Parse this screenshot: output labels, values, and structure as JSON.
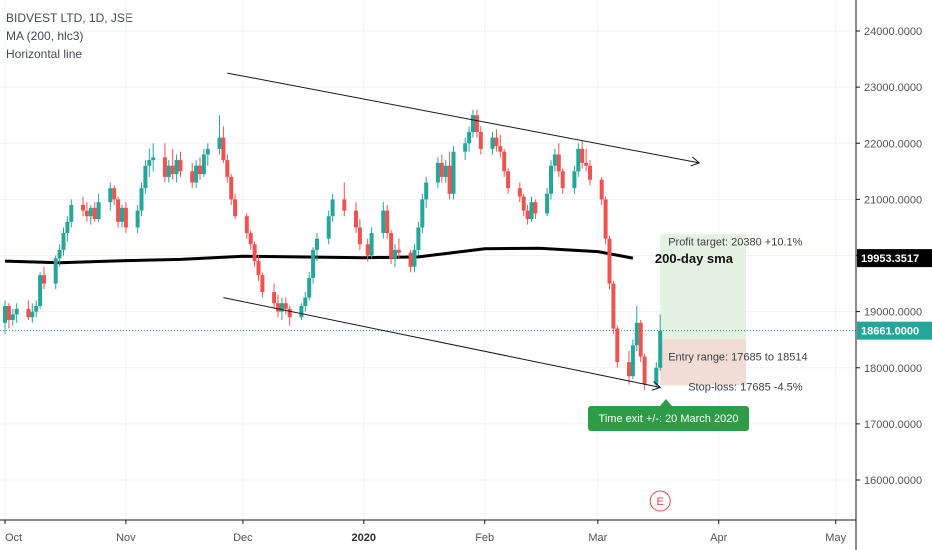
{
  "legend": {
    "symbol": "BIDVEST LTD, 1D, JSE",
    "indicator": "MA (200, hlc3)",
    "drawing": "Horizontal line"
  },
  "colors": {
    "up": "#26a69a",
    "down": "#ef5350",
    "sma": "#000000",
    "hline": "#1e9c8a",
    "profit_zone": "#e4f3e1",
    "loss_zone": "#f1ddd5",
    "time_exit_bg": "#2e9c47",
    "earnings_marker": "#e04848"
  },
  "chart_data": {
    "type": "candlestick",
    "title": "BIDVEST LTD, 1D, JSE",
    "y_axis": {
      "ylim": [
        15500,
        24500
      ],
      "ticks": [
        "16000.0000",
        "17000.0000",
        "18000.0000",
        "19000.0000",
        "20000.0000",
        "21000.0000",
        "22000.0000",
        "23000.0000",
        "24000.0000"
      ]
    },
    "x_axis": {
      "ticks": [
        {
          "label": "Oct",
          "date": "2019-10-01",
          "bold": false
        },
        {
          "label": "Nov",
          "date": "2019-11-01",
          "bold": false
        },
        {
          "label": "Dec",
          "date": "2019-12-01",
          "bold": false
        },
        {
          "label": "2020",
          "date": "2020-01-01",
          "bold": true
        },
        {
          "label": "Feb",
          "date": "2020-02-01",
          "bold": false
        },
        {
          "label": "Mar",
          "date": "2020-03-01",
          "bold": false
        },
        {
          "label": "Apr",
          "date": "2020-04-01",
          "bold": false
        },
        {
          "label": "May",
          "date": "2020-05-01",
          "bold": false
        }
      ]
    },
    "candles": [
      {
        "date": "2019-10-01",
        "o": 18800,
        "h": 19200,
        "l": 18600,
        "c": 19100
      },
      {
        "date": "2019-10-02",
        "o": 19100,
        "h": 19150,
        "l": 18700,
        "c": 18850
      },
      {
        "date": "2019-10-03",
        "o": 18850,
        "h": 19050,
        "l": 18750,
        "c": 18950
      },
      {
        "date": "2019-10-04",
        "o": 18950,
        "h": 19150,
        "l": 18800,
        "c": 19050
      },
      {
        "date": "2019-10-07",
        "o": 19050,
        "h": 19200,
        "l": 18850,
        "c": 18900
      },
      {
        "date": "2019-10-08",
        "o": 18900,
        "h": 19150,
        "l": 18800,
        "c": 19000
      },
      {
        "date": "2019-10-09",
        "o": 19000,
        "h": 19200,
        "l": 18900,
        "c": 19100
      },
      {
        "date": "2019-10-10",
        "o": 19100,
        "h": 19700,
        "l": 19050,
        "c": 19650
      },
      {
        "date": "2019-10-11",
        "o": 19650,
        "h": 19800,
        "l": 19400,
        "c": 19500
      },
      {
        "date": "2019-10-14",
        "o": 19500,
        "h": 20000,
        "l": 19400,
        "c": 19950
      },
      {
        "date": "2019-10-15",
        "o": 19950,
        "h": 20200,
        "l": 19800,
        "c": 20100
      },
      {
        "date": "2019-10-16",
        "o": 20100,
        "h": 20500,
        "l": 20000,
        "c": 20400
      },
      {
        "date": "2019-10-17",
        "o": 20400,
        "h": 20700,
        "l": 20250,
        "c": 20600
      },
      {
        "date": "2019-10-18",
        "o": 20600,
        "h": 21000,
        "l": 20500,
        "c": 20900
      },
      {
        "date": "2019-10-21",
        "o": 20900,
        "h": 21050,
        "l": 20700,
        "c": 20800
      },
      {
        "date": "2019-10-22",
        "o": 20800,
        "h": 20950,
        "l": 20600,
        "c": 20700
      },
      {
        "date": "2019-10-23",
        "o": 20700,
        "h": 20900,
        "l": 20550,
        "c": 20850
      },
      {
        "date": "2019-10-24",
        "o": 20850,
        "h": 20950,
        "l": 20600,
        "c": 20650
      },
      {
        "date": "2019-10-25",
        "o": 20650,
        "h": 21100,
        "l": 20600,
        "c": 20950
      },
      {
        "date": "2019-10-28",
        "o": 20950,
        "h": 21300,
        "l": 20800,
        "c": 21200
      },
      {
        "date": "2019-10-29",
        "o": 21200,
        "h": 21250,
        "l": 20900,
        "c": 21000
      },
      {
        "date": "2019-10-30",
        "o": 21000,
        "h": 21050,
        "l": 20500,
        "c": 20600
      },
      {
        "date": "2019-10-31",
        "o": 20600,
        "h": 20900,
        "l": 20500,
        "c": 20850
      },
      {
        "date": "2019-11-01",
        "o": 20850,
        "h": 20950,
        "l": 20400,
        "c": 20500
      },
      {
        "date": "2019-11-04",
        "o": 20500,
        "h": 20900,
        "l": 20400,
        "c": 20800
      },
      {
        "date": "2019-11-05",
        "o": 20800,
        "h": 21300,
        "l": 20700,
        "c": 21200
      },
      {
        "date": "2019-11-06",
        "o": 21200,
        "h": 21700,
        "l": 21100,
        "c": 21600
      },
      {
        "date": "2019-11-07",
        "o": 21600,
        "h": 21900,
        "l": 21400,
        "c": 21700
      },
      {
        "date": "2019-11-08",
        "o": 21700,
        "h": 22000,
        "l": 21500,
        "c": 21750
      },
      {
        "date": "2019-11-11",
        "o": 21750,
        "h": 22000,
        "l": 21300,
        "c": 21400
      },
      {
        "date": "2019-11-12",
        "o": 21400,
        "h": 21700,
        "l": 21300,
        "c": 21600
      },
      {
        "date": "2019-11-13",
        "o": 21600,
        "h": 21900,
        "l": 21350,
        "c": 21450
      },
      {
        "date": "2019-11-14",
        "o": 21450,
        "h": 21800,
        "l": 21300,
        "c": 21700
      },
      {
        "date": "2019-11-15",
        "o": 21700,
        "h": 21850,
        "l": 21400,
        "c": 21500
      },
      {
        "date": "2019-11-18",
        "o": 21500,
        "h": 21650,
        "l": 21200,
        "c": 21300
      },
      {
        "date": "2019-11-19",
        "o": 21300,
        "h": 21700,
        "l": 21200,
        "c": 21600
      },
      {
        "date": "2019-11-20",
        "o": 21600,
        "h": 21750,
        "l": 21350,
        "c": 21450
      },
      {
        "date": "2019-11-21",
        "o": 21450,
        "h": 21900,
        "l": 21400,
        "c": 21800
      },
      {
        "date": "2019-11-22",
        "o": 21800,
        "h": 22000,
        "l": 21600,
        "c": 21900
      },
      {
        "date": "2019-11-25",
        "o": 21900,
        "h": 22500,
        "l": 21800,
        "c": 22100
      },
      {
        "date": "2019-11-26",
        "o": 22100,
        "h": 22300,
        "l": 21650,
        "c": 21700
      },
      {
        "date": "2019-11-27",
        "o": 21700,
        "h": 21800,
        "l": 21300,
        "c": 21400
      },
      {
        "date": "2019-11-28",
        "o": 21400,
        "h": 21450,
        "l": 20900,
        "c": 21000
      },
      {
        "date": "2019-11-29",
        "o": 21000,
        "h": 21100,
        "l": 20650,
        "c": 20700
      },
      {
        "date": "2019-12-02",
        "o": 20700,
        "h": 20750,
        "l": 20300,
        "c": 20400
      },
      {
        "date": "2019-12-03",
        "o": 20400,
        "h": 20450,
        "l": 20100,
        "c": 20200
      },
      {
        "date": "2019-12-04",
        "o": 20200,
        "h": 20250,
        "l": 19800,
        "c": 19900
      },
      {
        "date": "2019-12-05",
        "o": 19900,
        "h": 20000,
        "l": 19550,
        "c": 19650
      },
      {
        "date": "2019-12-06",
        "o": 19650,
        "h": 19700,
        "l": 19250,
        "c": 19350
      },
      {
        "date": "2019-12-09",
        "o": 19350,
        "h": 19500,
        "l": 19050,
        "c": 19150
      },
      {
        "date": "2019-12-10",
        "o": 19150,
        "h": 19300,
        "l": 18900,
        "c": 19000
      },
      {
        "date": "2019-12-11",
        "o": 19000,
        "h": 19250,
        "l": 18850,
        "c": 19150
      },
      {
        "date": "2019-12-12",
        "o": 19150,
        "h": 19250,
        "l": 18950,
        "c": 19050
      },
      {
        "date": "2019-12-13",
        "o": 19050,
        "h": 19100,
        "l": 18750,
        "c": 18900
      },
      {
        "date": "2019-12-16",
        "o": 18900,
        "h": 19150,
        "l": 18850,
        "c": 19100
      },
      {
        "date": "2019-12-17",
        "o": 19100,
        "h": 19350,
        "l": 19000,
        "c": 19250
      },
      {
        "date": "2019-12-18",
        "o": 19250,
        "h": 19700,
        "l": 19200,
        "c": 19600
      },
      {
        "date": "2019-12-19",
        "o": 19600,
        "h": 20150,
        "l": 19500,
        "c": 20100
      },
      {
        "date": "2019-12-20",
        "o": 20100,
        "h": 20400,
        "l": 19900,
        "c": 20300
      },
      {
        "date": "2019-12-23",
        "o": 20300,
        "h": 20800,
        "l": 20200,
        "c": 20700
      },
      {
        "date": "2019-12-24",
        "o": 20700,
        "h": 21100,
        "l": 20600,
        "c": 21000
      },
      {
        "date": "2019-12-27",
        "o": 21000,
        "h": 21300,
        "l": 20700,
        "c": 20800
      },
      {
        "date": "2019-12-30",
        "o": 20800,
        "h": 20950,
        "l": 20400,
        "c": 20500
      },
      {
        "date": "2019-12-31",
        "o": 20500,
        "h": 20650,
        "l": 20100,
        "c": 20200
      },
      {
        "date": "2020-01-02",
        "o": 20200,
        "h": 20300,
        "l": 19900,
        "c": 20000
      },
      {
        "date": "2020-01-03",
        "o": 20000,
        "h": 20500,
        "l": 19950,
        "c": 20400
      },
      {
        "date": "2020-01-06",
        "o": 20400,
        "h": 20950,
        "l": 20300,
        "c": 20800
      },
      {
        "date": "2020-01-07",
        "o": 20800,
        "h": 20900,
        "l": 20300,
        "c": 20400
      },
      {
        "date": "2020-01-08",
        "o": 20400,
        "h": 20450,
        "l": 19850,
        "c": 19950
      },
      {
        "date": "2020-01-09",
        "o": 19950,
        "h": 20200,
        "l": 19800,
        "c": 20100
      },
      {
        "date": "2020-01-10",
        "o": 20100,
        "h": 20300,
        "l": 19950,
        "c": 20050
      },
      {
        "date": "2020-01-13",
        "o": 20050,
        "h": 20100,
        "l": 19700,
        "c": 19800
      },
      {
        "date": "2020-01-14",
        "o": 19800,
        "h": 20200,
        "l": 19700,
        "c": 20100
      },
      {
        "date": "2020-01-15",
        "o": 20100,
        "h": 20600,
        "l": 20000,
        "c": 20500
      },
      {
        "date": "2020-01-16",
        "o": 20500,
        "h": 21100,
        "l": 20400,
        "c": 21000
      },
      {
        "date": "2020-01-17",
        "o": 21000,
        "h": 21400,
        "l": 20850,
        "c": 21300
      },
      {
        "date": "2020-01-20",
        "o": 21300,
        "h": 21750,
        "l": 21200,
        "c": 21650
      },
      {
        "date": "2020-01-21",
        "o": 21650,
        "h": 21800,
        "l": 21300,
        "c": 21400
      },
      {
        "date": "2020-01-22",
        "o": 21400,
        "h": 21700,
        "l": 21300,
        "c": 21600
      },
      {
        "date": "2020-01-23",
        "o": 21600,
        "h": 21850,
        "l": 21000,
        "c": 21100
      },
      {
        "date": "2020-01-24",
        "o": 21100,
        "h": 21950,
        "l": 21000,
        "c": 21850
      },
      {
        "date": "2020-01-27",
        "o": 21850,
        "h": 22100,
        "l": 21700,
        "c": 22000
      },
      {
        "date": "2020-01-28",
        "o": 22000,
        "h": 22300,
        "l": 21850,
        "c": 22200
      },
      {
        "date": "2020-01-29",
        "o": 22200,
        "h": 22600,
        "l": 22100,
        "c": 22500
      },
      {
        "date": "2020-01-30",
        "o": 22500,
        "h": 22600,
        "l": 22100,
        "c": 22200
      },
      {
        "date": "2020-01-31",
        "o": 22200,
        "h": 22300,
        "l": 21800,
        "c": 21900
      },
      {
        "date": "2020-02-03",
        "o": 21900,
        "h": 22200,
        "l": 21800,
        "c": 22100
      },
      {
        "date": "2020-02-04",
        "o": 22100,
        "h": 22250,
        "l": 21850,
        "c": 21950
      },
      {
        "date": "2020-02-05",
        "o": 21950,
        "h": 22150,
        "l": 21750,
        "c": 21850
      },
      {
        "date": "2020-02-06",
        "o": 21850,
        "h": 21900,
        "l": 21400,
        "c": 21500
      },
      {
        "date": "2020-02-07",
        "o": 21500,
        "h": 21550,
        "l": 21100,
        "c": 21200
      },
      {
        "date": "2020-02-10",
        "o": 21200,
        "h": 21300,
        "l": 20950,
        "c": 21050
      },
      {
        "date": "2020-02-11",
        "o": 21050,
        "h": 21100,
        "l": 20700,
        "c": 20800
      },
      {
        "date": "2020-02-12",
        "o": 20800,
        "h": 20900,
        "l": 20550,
        "c": 20650
      },
      {
        "date": "2020-02-13",
        "o": 20650,
        "h": 21050,
        "l": 20600,
        "c": 20950
      },
      {
        "date": "2020-02-14",
        "o": 20950,
        "h": 21000,
        "l": 20650,
        "c": 20750
      },
      {
        "date": "2020-02-17",
        "o": 20750,
        "h": 21200,
        "l": 20700,
        "c": 21100
      },
      {
        "date": "2020-02-18",
        "o": 21100,
        "h": 21700,
        "l": 21000,
        "c": 21600
      },
      {
        "date": "2020-02-19",
        "o": 21600,
        "h": 21900,
        "l": 21500,
        "c": 21800
      },
      {
        "date": "2020-02-20",
        "o": 21800,
        "h": 22000,
        "l": 21400,
        "c": 21500
      },
      {
        "date": "2020-02-21",
        "o": 21500,
        "h": 21550,
        "l": 21100,
        "c": 21200
      },
      {
        "date": "2020-02-24",
        "o": 21200,
        "h": 21600,
        "l": 21100,
        "c": 21500
      },
      {
        "date": "2020-02-25",
        "o": 21500,
        "h": 22000,
        "l": 21400,
        "c": 21900
      },
      {
        "date": "2020-02-26",
        "o": 21900,
        "h": 22050,
        "l": 21550,
        "c": 21650
      },
      {
        "date": "2020-02-27",
        "o": 21650,
        "h": 21900,
        "l": 21500,
        "c": 21600
      },
      {
        "date": "2020-02-28",
        "o": 21600,
        "h": 21700,
        "l": 21250,
        "c": 21350
      },
      {
        "date": "2020-03-02",
        "o": 21350,
        "h": 21400,
        "l": 20900,
        "c": 21000
      },
      {
        "date": "2020-03-03",
        "o": 21000,
        "h": 21050,
        "l": 20200,
        "c": 20300
      },
      {
        "date": "2020-03-04",
        "o": 20300,
        "h": 20350,
        "l": 19400,
        "c": 19500
      },
      {
        "date": "2020-03-05",
        "o": 19500,
        "h": 19550,
        "l": 18600,
        "c": 18700
      },
      {
        "date": "2020-03-06",
        "o": 18700,
        "h": 18750,
        "l": 18000,
        "c": 18100
      },
      {
        "date": "2020-03-09",
        "o": 18100,
        "h": 18300,
        "l": 17700,
        "c": 17850
      },
      {
        "date": "2020-03-10",
        "o": 17850,
        "h": 18500,
        "l": 17800,
        "c": 18400
      },
      {
        "date": "2020-03-11",
        "o": 18400,
        "h": 19100,
        "l": 18300,
        "c": 18800
      },
      {
        "date": "2020-03-12",
        "o": 18800,
        "h": 18850,
        "l": 18100,
        "c": 18200
      },
      {
        "date": "2020-03-13",
        "o": 18200,
        "h": 18250,
        "l": 17600,
        "c": 17700
      },
      {
        "date": "2020-03-16",
        "o": 17700,
        "h": 18100,
        "l": 17650,
        "c": 18000
      },
      {
        "date": "2020-03-17",
        "o": 18000,
        "h": 18950,
        "l": 17950,
        "c": 18661
      }
    ],
    "sma": {
      "name": "MA (200, hlc3)",
      "points": [
        {
          "date": "2019-10-01",
          "v": 19900
        },
        {
          "date": "2019-10-15",
          "v": 19870
        },
        {
          "date": "2019-11-01",
          "v": 19910
        },
        {
          "date": "2019-11-15",
          "v": 19930
        },
        {
          "date": "2019-12-01",
          "v": 19985
        },
        {
          "date": "2019-12-15",
          "v": 19975
        },
        {
          "date": "2020-01-01",
          "v": 19960
        },
        {
          "date": "2020-01-15",
          "v": 19975
        },
        {
          "date": "2020-02-01",
          "v": 20120
        },
        {
          "date": "2020-02-15",
          "v": 20130
        },
        {
          "date": "2020-03-01",
          "v": 20070
        },
        {
          "date": "2020-03-10",
          "v": 19953.3517
        }
      ],
      "label": "200-day sma",
      "last_label": "19953.3517"
    },
    "horizontal_line": {
      "value": 18661,
      "label": "18661.0000"
    },
    "trendlines": [
      {
        "start": {
          "date": "2019-11-27",
          "v": 23250
        },
        "end": {
          "date": "2020-03-27",
          "v": 21650
        }
      },
      {
        "start": {
          "date": "2019-11-26",
          "v": 19250
        },
        "end": {
          "date": "2020-03-17",
          "v": 17650
        }
      }
    ],
    "position": {
      "start_date": "2020-03-17",
      "end_date": "2020-04-08",
      "target": 20380,
      "entry_high": 18514,
      "stop": 17685,
      "profit_text": "Profit target: 20380 +10.1%",
      "entry_text": "Entry range: 17685 to 18514",
      "stop_text": "Stop-loss: 17685 -4.5%",
      "time_exit_text": "Time exit +/-: 20 March 2020"
    },
    "earnings_marker": {
      "date": "2020-03-17",
      "label": "E"
    },
    "grid": true
  }
}
